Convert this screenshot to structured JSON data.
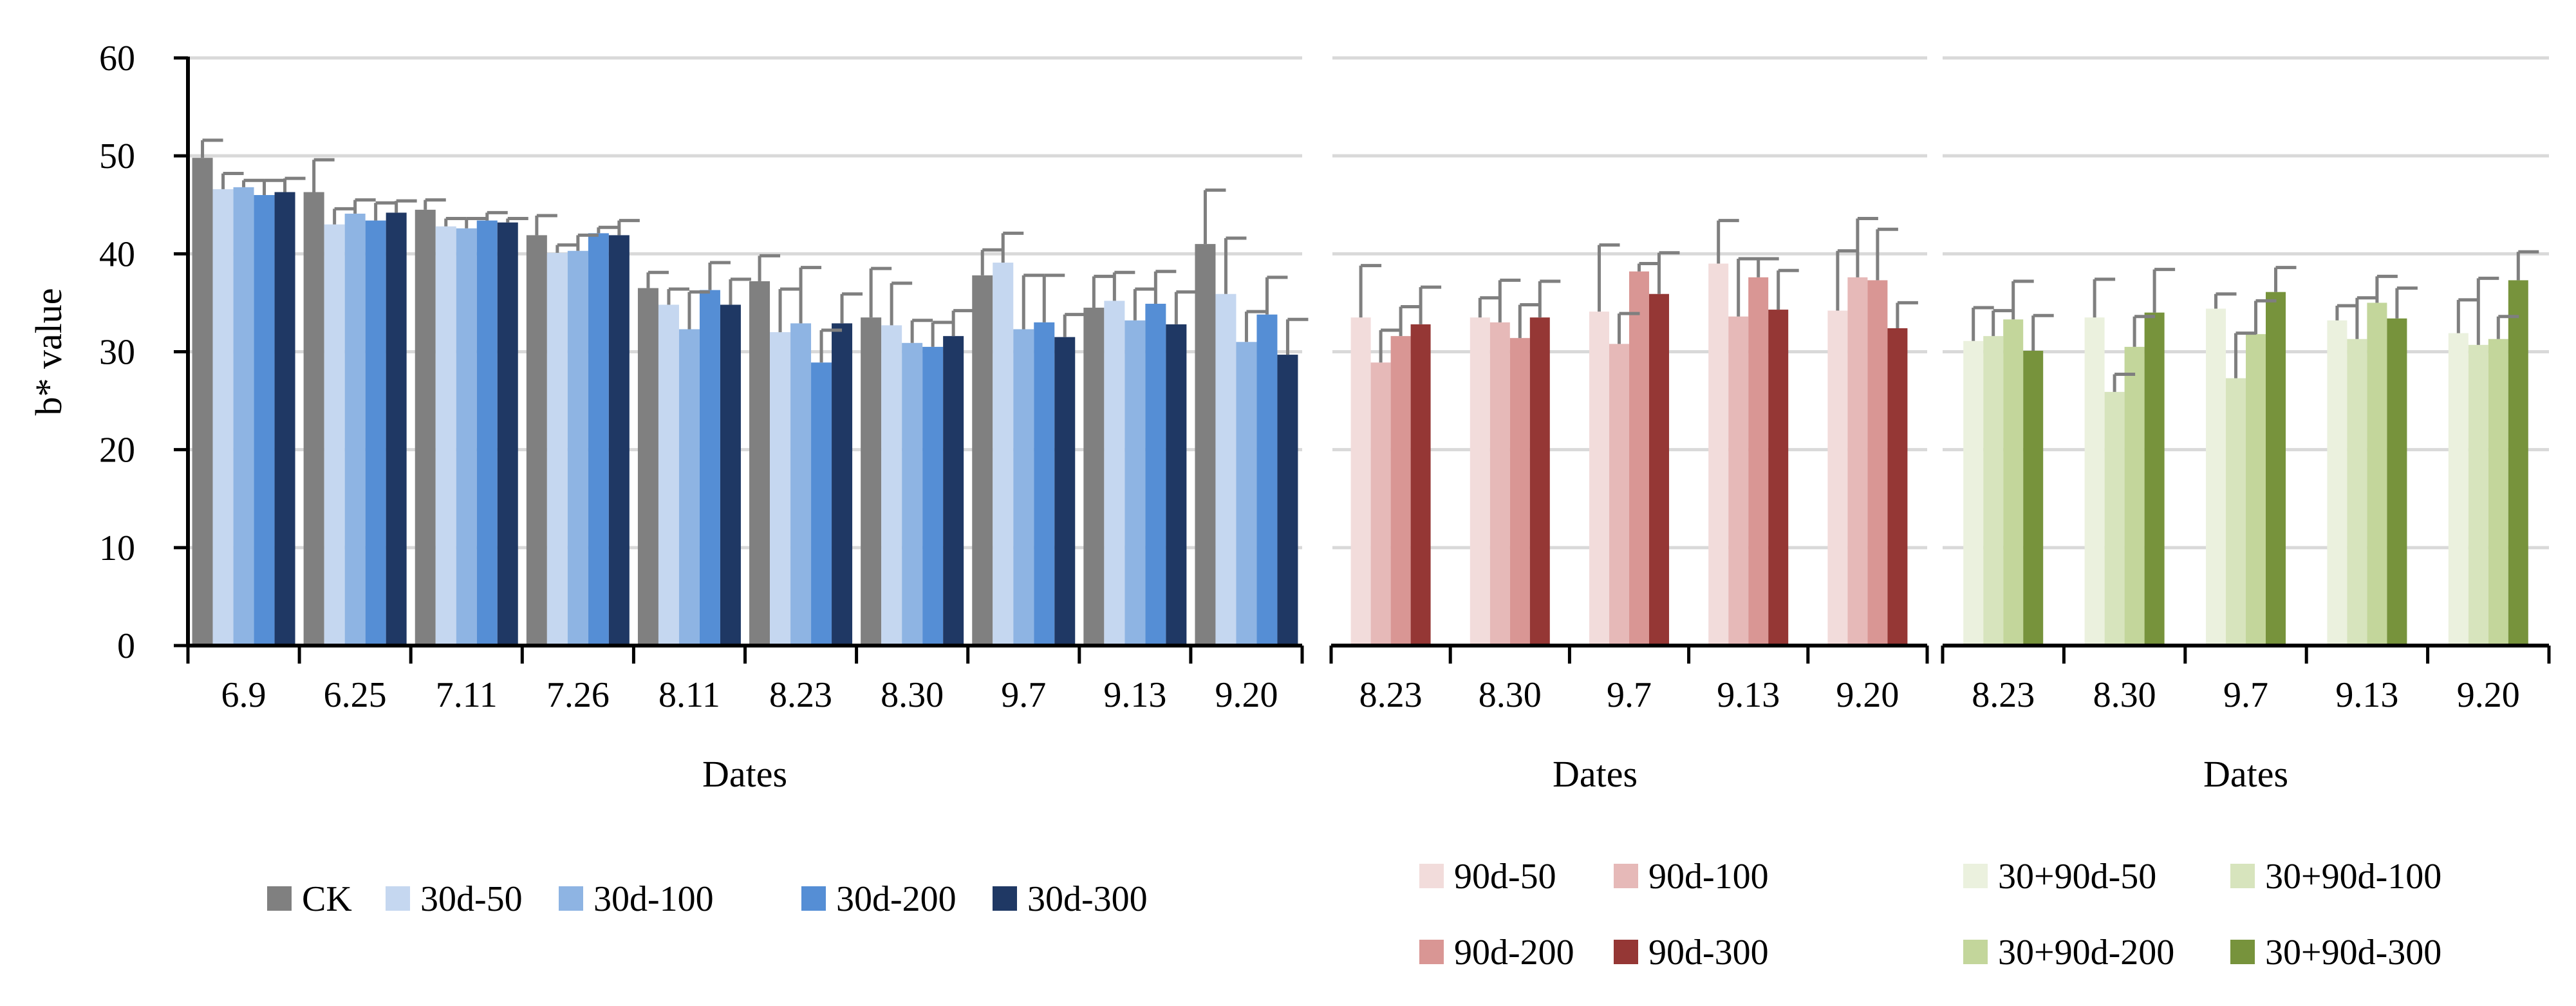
{
  "chart_data": [
    {
      "type": "bar",
      "ylabel": "b* value",
      "xlabel": "Dates",
      "ylim": [
        0,
        60
      ],
      "yticks": [
        0,
        10,
        20,
        30,
        40,
        50,
        60
      ],
      "categories": [
        "6.9",
        "6.25",
        "7.11",
        "7.26",
        "8.11",
        "8.23",
        "8.30",
        "9.7",
        "9.13",
        "9.20"
      ],
      "series": [
        {
          "name": "CK",
          "color": "#808080",
          "values": [
            49.8,
            46.3,
            44.5,
            41.9,
            36.5,
            37.2,
            33.5,
            37.8,
            34.5,
            41.0
          ],
          "errors": [
            1.8,
            3.3,
            1.0,
            2.0,
            1.6,
            2.6,
            5.0,
            2.6,
            3.2,
            5.5
          ]
        },
        {
          "name": "30d-50",
          "color": "#c5d7f0",
          "values": [
            46.6,
            43.0,
            42.8,
            40.1,
            34.8,
            32.0,
            32.7,
            39.1,
            35.2,
            35.9
          ],
          "errors": [
            1.6,
            1.6,
            0.8,
            0.8,
            1.6,
            4.4,
            4.3,
            3.0,
            2.9,
            5.7
          ]
        },
        {
          "name": "30d-100",
          "color": "#8eb4e3",
          "values": [
            46.8,
            44.1,
            42.6,
            40.3,
            32.3,
            32.9,
            30.9,
            32.3,
            33.2,
            31.0
          ],
          "errors": [
            0.7,
            1.4,
            1.0,
            1.6,
            3.8,
            5.7,
            2.3,
            5.5,
            3.2,
            3.1
          ]
        },
        {
          "name": "30d-200",
          "color": "#558ed5",
          "values": [
            46.0,
            43.4,
            43.4,
            42.1,
            36.3,
            28.9,
            30.5,
            33.0,
            34.9,
            33.8
          ],
          "errors": [
            1.5,
            1.8,
            0.8,
            0.6,
            2.8,
            3.3,
            2.5,
            4.8,
            3.3,
            3.8
          ]
        },
        {
          "name": "30d-300",
          "color": "#1f3864",
          "values": [
            46.3,
            44.2,
            43.2,
            41.9,
            34.8,
            32.9,
            31.6,
            31.5,
            32.8,
            29.7
          ],
          "errors": [
            1.4,
            1.2,
            0.4,
            1.5,
            2.6,
            3.0,
            2.6,
            2.3,
            3.3,
            3.6
          ]
        }
      ]
    },
    {
      "type": "bar",
      "xlabel": "Dates",
      "ylim": [
        0,
        60
      ],
      "categories": [
        "8.23",
        "8.30",
        "9.7",
        "9.13",
        "9.20"
      ],
      "series": [
        {
          "name": "90d-50",
          "color": "#f2dcdb",
          "values": [
            33.5,
            33.5,
            34.1,
            39.0,
            34.2
          ],
          "errors": [
            5.3,
            2.0,
            6.8,
            4.4,
            6.1
          ]
        },
        {
          "name": "90d-100",
          "color": "#e6b9b8",
          "values": [
            28.9,
            33.0,
            30.8,
            33.6,
            37.6
          ],
          "errors": [
            3.3,
            4.3,
            3.1,
            5.9,
            6.0
          ]
        },
        {
          "name": "90d-200",
          "color": "#d99694",
          "values": [
            31.6,
            31.4,
            38.2,
            37.6,
            37.3
          ],
          "errors": [
            3.0,
            3.4,
            0.8,
            1.9,
            5.2
          ]
        },
        {
          "name": "90d-300",
          "color": "#953735",
          "values": [
            32.8,
            33.5,
            35.9,
            34.3,
            32.4
          ],
          "errors": [
            3.8,
            3.7,
            4.2,
            4.0,
            2.6
          ]
        }
      ]
    },
    {
      "type": "bar",
      "xlabel": "Dates",
      "ylim": [
        0,
        60
      ],
      "categories": [
        "8.23",
        "8.30",
        "9.7",
        "9.13",
        "9.20"
      ],
      "series": [
        {
          "name": "30+90d-50",
          "color": "#ebf1de",
          "values": [
            31.1,
            33.5,
            34.4,
            33.2,
            31.9
          ],
          "errors": [
            3.4,
            3.9,
            1.5,
            1.5,
            3.4
          ]
        },
        {
          "name": "30+90d-100",
          "color": "#d7e4bd",
          "values": [
            31.6,
            25.9,
            27.3,
            31.3,
            30.7
          ],
          "errors": [
            2.6,
            1.8,
            4.6,
            4.2,
            6.8
          ]
        },
        {
          "name": "30+90d-200",
          "color": "#c3d69b",
          "values": [
            33.3,
            30.5,
            31.8,
            35.0,
            31.3
          ],
          "errors": [
            3.9,
            3.1,
            3.4,
            2.7,
            2.3
          ]
        },
        {
          "name": "30+90d-300",
          "color": "#77933c",
          "values": [
            30.1,
            34.0,
            36.1,
            33.4,
            37.3
          ],
          "errors": [
            3.6,
            4.4,
            2.5,
            3.1,
            2.9
          ]
        }
      ]
    }
  ]
}
